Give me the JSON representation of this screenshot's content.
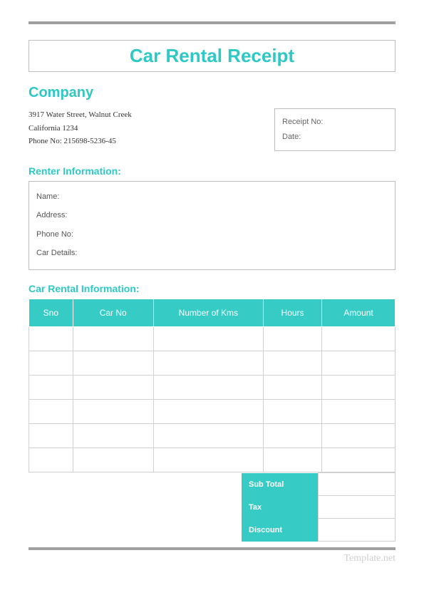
{
  "colors": {
    "accent": "#2ec9c4",
    "header_bg": "#37cbc6",
    "rule": "#a0a0a0",
    "border": "#bfbfbf",
    "cell_border": "#d0d0d0",
    "text": "#333333",
    "muted": "#666666",
    "watermark": "#cfcfcf"
  },
  "title": "Car Rental Receipt",
  "company": {
    "heading": "Company",
    "address_line1": "3917 Water Street, Walnut Creek",
    "address_line2": "California 1234",
    "phone_label": "Phone No: 215698-5236-45"
  },
  "receipt_box": {
    "receipt_no_label": "Receipt No:",
    "date_label": "Date:"
  },
  "renter": {
    "heading": "Renter Information:",
    "name_label": "Name:",
    "address_label": "Address:",
    "phone_label": "Phone No:",
    "car_details_label": "Car Details:"
  },
  "rental": {
    "heading": "Car Rental Information:",
    "columns": [
      "Sno",
      "Car No",
      "Number of Kms",
      "Hours",
      "Amount"
    ],
    "column_widths": [
      "12%",
      "22%",
      "30%",
      "16%",
      "20%"
    ],
    "row_count": 6
  },
  "summary": {
    "labels": [
      "Sub Total",
      "Tax",
      "Discount"
    ]
  },
  "watermark": "Template.net"
}
